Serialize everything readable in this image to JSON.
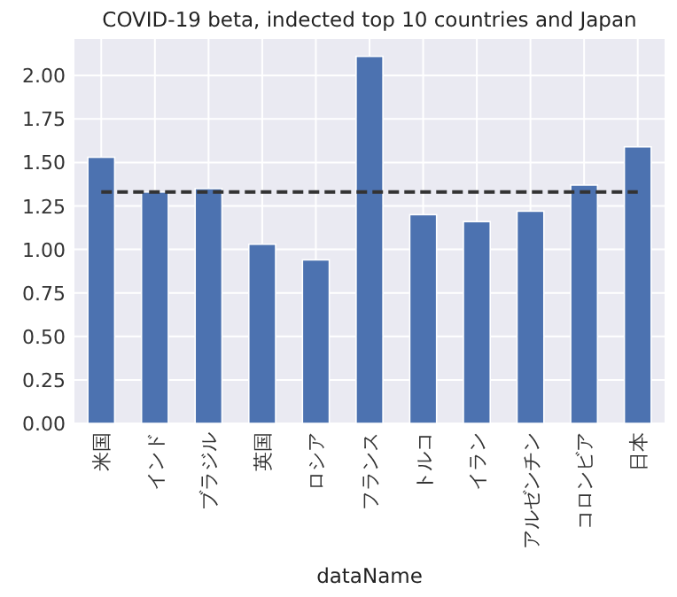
{
  "chart_data": {
    "type": "bar",
    "title": "COVID-19 beta, indected top 10 countries and Japan",
    "xlabel": "dataName",
    "categories": [
      "米国",
      "インド",
      "ブラジル",
      "英国",
      "ロシア",
      "フランス",
      "トルコ",
      "イラン",
      "アルゼンチン",
      "コロンビア",
      "日本"
    ],
    "series": [
      {
        "color": "#4c72b0",
        "values": [
          1.53,
          1.33,
          1.35,
          1.03,
          0.94,
          2.11,
          1.2,
          1.16,
          1.22,
          1.37,
          1.59
        ]
      },
      {
        "type": "line",
        "color": "#333333",
        "line_style": "dashed",
        "values": [
          1.33,
          1.33,
          1.33,
          1.33,
          1.33,
          1.33,
          1.33,
          1.33,
          1.33,
          1.33,
          1.33
        ]
      }
    ],
    "ylim": [
      0,
      2.21
    ],
    "yticks": [
      {
        "value": 0,
        "label": "0.00"
      },
      {
        "value": 0.25,
        "label": "0.25"
      },
      {
        "value": 0.5,
        "label": "0.50"
      },
      {
        "value": 0.75,
        "label": "0.75"
      },
      {
        "value": 1,
        "label": "1.00"
      },
      {
        "value": 1.25,
        "label": "1.25"
      },
      {
        "value": 1.5,
        "label": "1.50"
      },
      {
        "value": 1.75,
        "label": "1.75"
      },
      {
        "value": 2,
        "label": "2.00"
      }
    ],
    "grid": true
  }
}
